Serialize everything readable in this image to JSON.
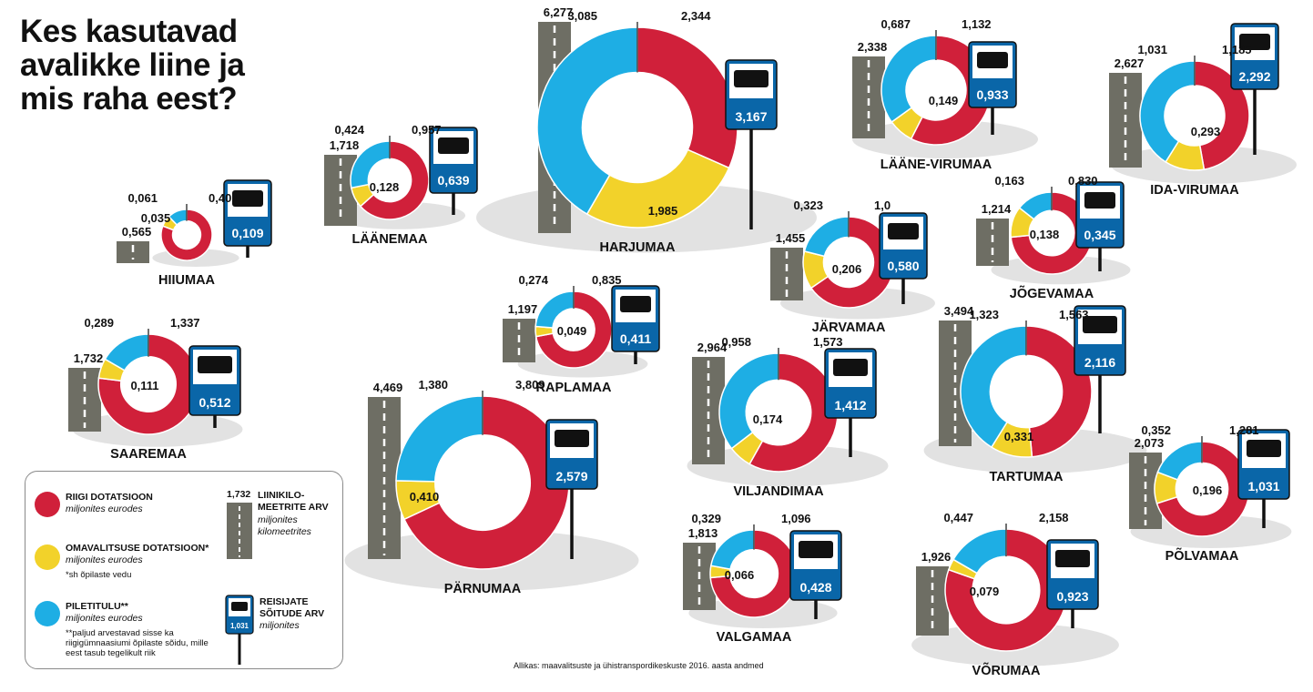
{
  "title_lines": [
    "Kes kasutavad",
    "avalikke liine ja",
    "mis raha eest?"
  ],
  "colors": {
    "state": "#d0203a",
    "municipal": "#f2d22a",
    "ticket": "#1eaee4",
    "road": "#6e6e64",
    "sign": "#0a66a8"
  },
  "legend": {
    "state": {
      "title": "RIIGI DOTATSIOON",
      "sub": "miljonites eurodes"
    },
    "municipal": {
      "title": "OMAVALITSUSE DOTATSIOON*",
      "sub": "miljonites eurodes",
      "note": "*sh õpilaste vedu"
    },
    "ticket": {
      "title": "PILETITULU**",
      "sub": "miljonites eurodes",
      "note": "**paljud arvestavad sisse ka riigigümnaasiumi õpilaste sõidu, mille eest tasub tegelikult riik"
    },
    "km": {
      "sample": "1,732",
      "title1": "LIINIKILO-",
      "title2": "MEETRITE ARV",
      "sub1": "miljonites",
      "sub2": "kilomeetrites"
    },
    "trips": {
      "sample": "1,031",
      "title1": "REISIJATE",
      "title2": "SÕITUDE ARV",
      "sub": "miljonites"
    }
  },
  "source": "Allikas: maavalitsuste ja ühistranspordikeskuste 2016. aasta andmed",
  "chart_data": {
    "type": "pie",
    "variant": "donut",
    "series_names": [
      "Riigi dotatsioon",
      "Omavalitsuse dotatsioon",
      "Piletitulu"
    ],
    "counties": [
      {
        "name": "HIIUMAA",
        "state": 0.401,
        "municipal": 0.035,
        "ticket": 0.061,
        "state_label": "0,401",
        "municipal_label": "0,035",
        "ticket_label": "0,061",
        "km": "0,565",
        "trips": "0,109"
      },
      {
        "name": "LÄÄNEMAA",
        "state": 0.957,
        "municipal": 0.128,
        "ticket": 0.424,
        "state_label": "0,957",
        "municipal_label": "0,128",
        "ticket_label": "0,424",
        "km": "1,718",
        "trips": "0,639"
      },
      {
        "name": "HARJUMAA",
        "state": 2.344,
        "municipal": 1.985,
        "ticket": 3.085,
        "state_label": "2,344",
        "municipal_label": "1,985",
        "ticket_label": "3,085",
        "km": "6,277",
        "trips": "3,167"
      },
      {
        "name": "LÄÄNE-VIRUMAA",
        "state": 1.132,
        "municipal": 0.149,
        "ticket": 0.687,
        "state_label": "1,132",
        "municipal_label": "0,149",
        "ticket_label": "0,687",
        "km": "2,338",
        "trips": "0,933"
      },
      {
        "name": "IDA-VIRUMAA",
        "state": 1.185,
        "municipal": 0.293,
        "ticket": 1.031,
        "state_label": "1,185",
        "municipal_label": "0,293",
        "ticket_label": "1,031",
        "km": "2,627",
        "trips": "2,292"
      },
      {
        "name": "JÕGEVAMAA",
        "state": 0.83,
        "municipal": 0.138,
        "ticket": 0.163,
        "state_label": "0,830",
        "municipal_label": "0,138",
        "ticket_label": "0,163",
        "km": "1,214",
        "trips": "0,345"
      },
      {
        "name": "JÄRVAMAA",
        "state": 1.0,
        "municipal": 0.206,
        "ticket": 0.323,
        "state_label": "1,0",
        "municipal_label": "0,206",
        "ticket_label": "0,323",
        "km": "1,455",
        "trips": "0,580"
      },
      {
        "name": "RAPLAMAA",
        "state": 0.835,
        "municipal": 0.049,
        "ticket": 0.274,
        "state_label": "0,835",
        "municipal_label": "0,049",
        "ticket_label": "0,274",
        "km": "1,197",
        "trips": "0,411"
      },
      {
        "name": "SAAREMAA",
        "state": 1.337,
        "municipal": 0.111,
        "ticket": 0.289,
        "state_label": "1,337",
        "municipal_label": "0,111",
        "ticket_label": "0,289",
        "km": "1,732",
        "trips": "0,512"
      },
      {
        "name": "PÄRNUMAA",
        "state": 3.809,
        "municipal": 0.41,
        "ticket": 1.38,
        "state_label": "3,809",
        "municipal_label": "0,410",
        "ticket_label": "1,380",
        "km": "4,469",
        "trips": "2,579"
      },
      {
        "name": "VILJANDIMAA",
        "state": 1.573,
        "municipal": 0.174,
        "ticket": 0.958,
        "state_label": "1,573",
        "municipal_label": "0,174",
        "ticket_label": "0,958",
        "km": "2,964",
        "trips": "1,412"
      },
      {
        "name": "TARTUMAA",
        "state": 1.563,
        "municipal": 0.331,
        "ticket": 1.323,
        "state_label": "1,563",
        "municipal_label": "0,331",
        "ticket_label": "1,323",
        "km": "3,494",
        "trips": "2,116"
      },
      {
        "name": "PÕLVAMAA",
        "state": 1.281,
        "municipal": 0.196,
        "ticket": 0.352,
        "state_label": "1,281",
        "municipal_label": "0,196",
        "ticket_label": "0,352",
        "km": "2,073",
        "trips": "1,031"
      },
      {
        "name": "VALGAMAA",
        "state": 1.096,
        "municipal": 0.066,
        "ticket": 0.329,
        "state_label": "1,096",
        "municipal_label": "0,066",
        "ticket_label": "0,329",
        "km": "1,813",
        "trips": "0,428"
      },
      {
        "name": "VÕRUMAA",
        "state": 2.158,
        "municipal": 0.079,
        "ticket": 0.447,
        "state_label": "2,158",
        "municipal_label": "0,079",
        "ticket_label": "0,447",
        "km": "1,926",
        "trips": "0,923"
      }
    ]
  }
}
